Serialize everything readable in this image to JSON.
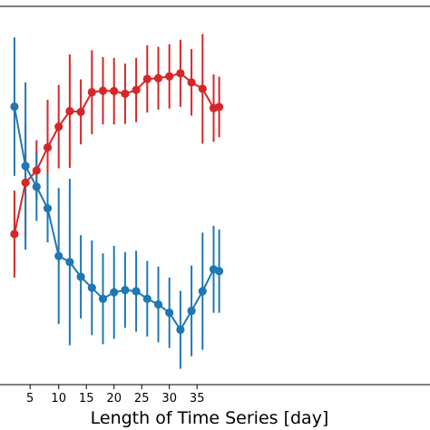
{
  "chart_data": {
    "type": "line",
    "title": "",
    "xlabel": "Length of Time Series [day]",
    "ylabel": "",
    "x_ticks": [
      10,
      15,
      20,
      25,
      30,
      35
    ],
    "x_tick_labels": [
      "10",
      "15",
      "20",
      "25",
      "30",
      "35"
    ],
    "xlim": [
      0.8,
      39
    ],
    "ylim": [
      0,
      1
    ],
    "grid": false,
    "legend": "none",
    "series": [
      {
        "color": "#d62728",
        "x": [
          2,
          4,
          6,
          8,
          10,
          12,
          14,
          16,
          18,
          20,
          22,
          24,
          26,
          28,
          30,
          32,
          34,
          36,
          38,
          39
        ],
        "y": [
          0.398,
          0.534,
          0.566,
          0.627,
          0.682,
          0.723,
          0.721,
          0.773,
          0.777,
          0.776,
          0.769,
          0.779,
          0.808,
          0.81,
          0.815,
          0.823,
          0.799,
          0.782,
          0.731,
          0.734
        ],
        "err": [
          0.115,
          0.148,
          0.08,
          0.126,
          0.11,
          0.15,
          0.086,
          0.111,
          0.089,
          0.088,
          0.08,
          0.085,
          0.089,
          0.083,
          0.085,
          0.089,
          0.088,
          0.145,
          0.089,
          0.08
        ]
      },
      {
        "color": "#1f77b4",
        "x": [
          2,
          4,
          6,
          8,
          10,
          12,
          14,
          16,
          18,
          20,
          22,
          24,
          26,
          28,
          30,
          32,
          34,
          36,
          38,
          39
        ],
        "y": [
          0.735,
          0.578,
          0.523,
          0.466,
          0.34,
          0.324,
          0.285,
          0.256,
          0.227,
          0.244,
          0.25,
          0.247,
          0.227,
          0.212,
          0.19,
          0.145,
          0.195,
          0.247,
          0.305,
          0.3
        ],
        "err": [
          0.183,
          0.221,
          0.09,
          0.09,
          0.18,
          0.22,
          0.11,
          0.125,
          0.12,
          0.123,
          0.1,
          0.107,
          0.1,
          0.1,
          0.093,
          0.103,
          0.12,
          0.155,
          0.115,
          0.11
        ]
      }
    ]
  }
}
